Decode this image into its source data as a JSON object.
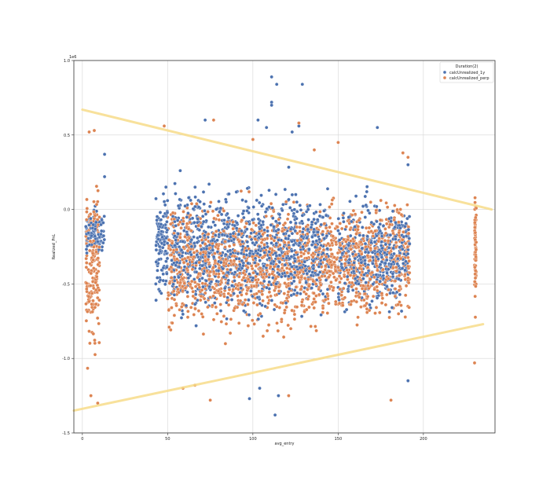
{
  "chart_data": {
    "type": "scatter",
    "title": "",
    "xlabel": "avg_entry",
    "ylabel": "Realized_PnL",
    "y_offset_text": "1e6",
    "xlim": [
      -5,
      242
    ],
    "ylim": [
      -1.5,
      1.0
    ],
    "x_ticks": [
      0,
      50,
      100,
      150,
      200
    ],
    "y_ticks": [
      1.0,
      0.5,
      0.0,
      -0.5,
      -1.0,
      -1.5
    ],
    "grid": true,
    "legend": {
      "title": "Duration(2)",
      "placement": "top-right",
      "entries": [
        {
          "label": "calcUnrealized_1y",
          "color": "#4c72b0"
        },
        {
          "label": "calcUnrealized_perp",
          "color": "#dd8452"
        }
      ]
    },
    "series": [
      {
        "name": "calcUnrealized_1y",
        "color": "#4c72b0",
        "clusters": [
          {
            "x": [
              2,
              13
            ],
            "y": [
              -0.35,
              0.05
            ]
          },
          {
            "x": [
              43,
              50
            ],
            "y": [
              -0.75,
              0.25
            ]
          },
          {
            "x": [
              52,
              145
            ],
            "y": [
              -0.85,
              0.3
            ]
          },
          {
            "x": [
              150,
              192
            ],
            "y": [
              -0.8,
              0.2
            ]
          }
        ],
        "outliers": [
          [
            111,
            0.89
          ],
          [
            114,
            0.84
          ],
          [
            129,
            0.84
          ],
          [
            111,
            0.72
          ],
          [
            111,
            0.7
          ],
          [
            103,
            0.6
          ],
          [
            108,
            0.55
          ],
          [
            127,
            0.56
          ],
          [
            173,
            0.55
          ],
          [
            123,
            0.52
          ],
          [
            72,
            0.6
          ],
          [
            113,
            -1.38
          ],
          [
            104,
            -1.2
          ],
          [
            98,
            -1.27
          ],
          [
            115,
            -1.25
          ],
          [
            191,
            -1.15
          ],
          [
            191,
            0.3
          ],
          [
            13,
            0.37
          ],
          [
            13,
            0.22
          ]
        ]
      },
      {
        "name": "calcUnrealized_perp",
        "color": "#dd8452",
        "clusters": [
          {
            "x": [
              2,
              10
            ],
            "y": [
              -1.2,
              0.4
            ]
          },
          {
            "x": [
              50,
              145
            ],
            "y": [
              -0.95,
              0.2
            ]
          },
          {
            "x": [
              145,
              192
            ],
            "y": [
              -0.9,
              0.25
            ]
          },
          {
            "x": [
              230,
              231
            ],
            "y": [
              -0.8,
              0.25
            ]
          }
        ],
        "outliers": [
          [
            4,
            0.52
          ],
          [
            7,
            0.53
          ],
          [
            9,
            -1.3
          ],
          [
            5,
            -1.25
          ],
          [
            77,
            0.6
          ],
          [
            48,
            0.56
          ],
          [
            75,
            -1.28
          ],
          [
            59,
            -1.2
          ],
          [
            66,
            -1.18
          ],
          [
            181,
            -1.28
          ],
          [
            230,
            -1.03
          ],
          [
            150,
            0.45
          ],
          [
            127,
            0.58
          ],
          [
            136,
            0.4
          ],
          [
            188,
            0.38
          ],
          [
            191,
            0.35
          ],
          [
            100,
            0.47
          ],
          [
            121,
            -1.25
          ]
        ]
      }
    ],
    "annotations": [
      {
        "type": "line",
        "color": "#f7dc8a",
        "from": [
          0,
          0.67
        ],
        "to": [
          240,
          0.0
        ]
      },
      {
        "type": "line",
        "color": "#f7dc8a",
        "from": [
          -5,
          -1.35
        ],
        "to": [
          235,
          -0.77
        ]
      }
    ]
  }
}
